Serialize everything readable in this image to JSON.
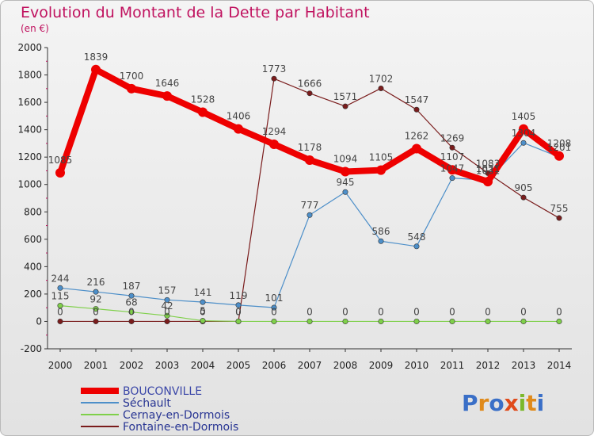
{
  "chart_data": {
    "type": "line",
    "title": "Evolution du Montant de la Dette par Habitant",
    "subtitle": "(en €)",
    "x": [
      "2000",
      "2001",
      "2002",
      "2003",
      "2004",
      "2005",
      "2006",
      "2007",
      "2008",
      "2009",
      "2010",
      "2011",
      "2012",
      "2013",
      "2014"
    ],
    "ylim": [
      -200,
      2000
    ],
    "yticks": [
      -200,
      0,
      200,
      400,
      600,
      800,
      1000,
      1200,
      1400,
      1600,
      1800,
      2000
    ],
    "grid": false,
    "legend_position": "bottom-left",
    "series": [
      {
        "name": "BOUCONVILLE",
        "color": "#ee0000",
        "values": [
          1085,
          1839,
          1700,
          1646,
          1528,
          1406,
          1294,
          1178,
          1094,
          1105,
          1262,
          1107,
          1021,
          1405,
          1208
        ]
      },
      {
        "name": "Séchault",
        "color": "#4d8fc9",
        "values": [
          244,
          216,
          187,
          157,
          141,
          119,
          101,
          777,
          945,
          586,
          548,
          1047,
          1031,
          1304,
          1201
        ]
      },
      {
        "name": "Cernay-en-Dormois",
        "color": "#7fd04a",
        "values": [
          115,
          92,
          68,
          42,
          5,
          0,
          0,
          0,
          0,
          0,
          0,
          0,
          0,
          0,
          0
        ]
      },
      {
        "name": "Fontaine-en-Dormois",
        "color": "#7a1c1c",
        "values": [
          0,
          0,
          0,
          0,
          0,
          0,
          1773,
          1666,
          1571,
          1702,
          1547,
          1269,
          1083,
          905,
          755
        ]
      }
    ]
  },
  "logo": {
    "text": "Proxiti"
  }
}
